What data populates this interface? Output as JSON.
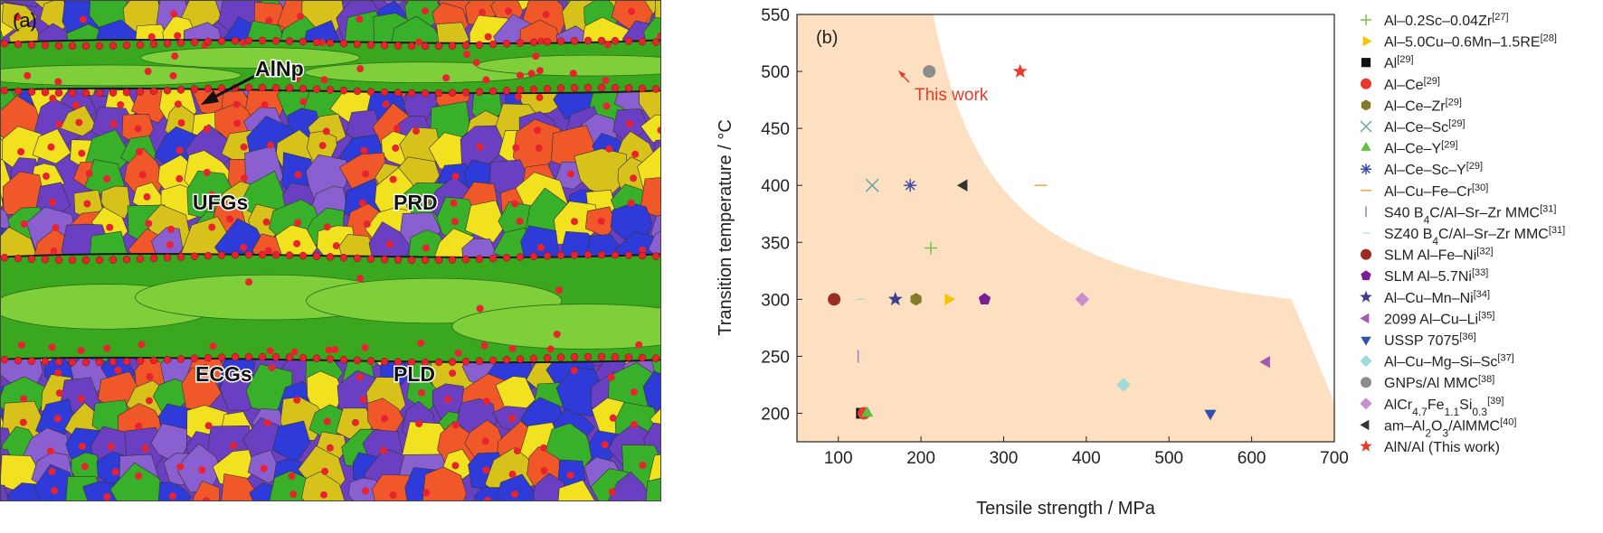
{
  "panel_a": {
    "label": "(a)",
    "annotations": {
      "alnp": "AlNp",
      "ufgs": "UFGs",
      "prd": "PRD",
      "ecgs": "ECGs",
      "pld": "PLD"
    },
    "colors": {
      "dark_green": "#3aa81e",
      "light_green": "#7fcf3a",
      "particle_red": "#e8232f",
      "grain_palette": [
        "#2f3bd8",
        "#8a5fd0",
        "#f2e11e",
        "#f0582a",
        "#39b02a",
        "#6b3fc2",
        "#d6c21a"
      ]
    }
  },
  "chart_data": {
    "type": "scatter",
    "panel_label": "(b)",
    "xlabel": "Tensile strength / MPa",
    "ylabel": "Transition temperature / °C",
    "xlim": [
      50,
      700
    ],
    "ylim": [
      175,
      550
    ],
    "xticks": [
      100,
      200,
      300,
      400,
      500,
      600,
      700
    ],
    "yticks": [
      200,
      250,
      300,
      350,
      400,
      450,
      500,
      550
    ],
    "grid": false,
    "legend_position": "right-outside",
    "shaded_region_color": "#fde0c2",
    "annotation": {
      "text": "This work",
      "color": "#e63a2b"
    },
    "series": [
      {
        "name": "Al-0.2Sc-0.04Zr",
        "ref": "[27]",
        "marker": "plus",
        "color": "#7bbf4e",
        "points": [
          [
            212,
            345
          ]
        ]
      },
      {
        "name": "Al-5.0Cu-0.6Mn-1.5RE",
        "ref": "[28]",
        "marker": "triangle-right",
        "color": "#f7c500",
        "points": [
          [
            233,
            300
          ]
        ]
      },
      {
        "name": "Al",
        "ref": "[29]",
        "marker": "square",
        "color": "#111111",
        "points": [
          [
            128,
            200
          ]
        ]
      },
      {
        "name": "Al-Ce",
        "ref": "[29]",
        "marker": "circle",
        "color": "#e63a2b",
        "points": [
          [
            131,
            200
          ]
        ]
      },
      {
        "name": "Al-Ce-Zr",
        "ref": "[29]",
        "marker": "hexagon",
        "color": "#857a2c",
        "points": [
          [
            194,
            300
          ]
        ]
      },
      {
        "name": "Al-Ce-Sc",
        "ref": "[29]",
        "marker": "x",
        "color": "#6aa6a6",
        "points": [
          [
            141,
            400
          ]
        ]
      },
      {
        "name": "Al-Ce-Y",
        "ref": "[29]",
        "marker": "triangle-up",
        "color": "#5bc23f",
        "points": [
          [
            135,
            200
          ]
        ]
      },
      {
        "name": "Al-Ce-Sc-Y",
        "ref": "[29]",
        "marker": "asterisk",
        "color": "#3d4ea6",
        "points": [
          [
            187,
            400
          ]
        ]
      },
      {
        "name": "Al-Cu-Fe-Cr",
        "ref": "[30]",
        "marker": "hline",
        "color": "#f0a24a",
        "points": [
          [
            345,
            400
          ]
        ]
      },
      {
        "name": "S40 B4C/Al-Sr-Zr MMC",
        "ref": "[31]",
        "marker": "vline",
        "color": "#8e86c2",
        "points": [
          [
            124,
            250
          ]
        ]
      },
      {
        "name": "SZ40 B4C/Al-Sr-Zr MMC",
        "ref": "[31]",
        "marker": "dot",
        "color": "#9bd3cf",
        "points": [
          [
            127,
            300
          ]
        ]
      },
      {
        "name": "SLM Al-Fe-Ni",
        "ref": "[32]",
        "marker": "circle",
        "color": "#9a2d22",
        "points": [
          [
            95,
            300
          ]
        ]
      },
      {
        "name": "SLM Al-5.7Ni",
        "ref": "[33]",
        "marker": "pentagon",
        "color": "#7a1f91",
        "points": [
          [
            277,
            300
          ]
        ]
      },
      {
        "name": "Al-Cu-Mn-Ni",
        "ref": "[34]",
        "marker": "star",
        "color": "#3b3f8f",
        "points": [
          [
            169,
            300
          ]
        ]
      },
      {
        "name": "2099 Al-Cu-Li",
        "ref": "[35]",
        "marker": "triangle-left",
        "color": "#a658b5",
        "points": [
          [
            618,
            245
          ]
        ]
      },
      {
        "name": "USSP 7075",
        "ref": "[36]",
        "marker": "triangle-down",
        "color": "#2f52a8",
        "points": [
          [
            550,
            200
          ]
        ]
      },
      {
        "name": "Al-Cu-Mg-Si-Sc",
        "ref": "[37]",
        "marker": "diamond",
        "color": "#9fdcd8",
        "points": [
          [
            445,
            225
          ]
        ]
      },
      {
        "name": "GNPs/Al MMC",
        "ref": "[38]",
        "marker": "circle",
        "color": "#8c8c8c",
        "points": [
          [
            210,
            500
          ]
        ]
      },
      {
        "name": "AlCr4.7Fe1.1Si0.3",
        "ref": "[39]",
        "marker": "diamond",
        "color": "#c98ccf",
        "points": [
          [
            395,
            300
          ]
        ]
      },
      {
        "name": "am-Al2O3/AlMMC",
        "ref": "[40]",
        "marker": "triangle-left",
        "color": "#333333",
        "points": [
          [
            252,
            400
          ]
        ]
      },
      {
        "name": "AlN/Al (This work)",
        "ref": "",
        "marker": "star",
        "color": "#e63a2b",
        "points": [
          [
            320,
            500
          ]
        ]
      }
    ]
  }
}
